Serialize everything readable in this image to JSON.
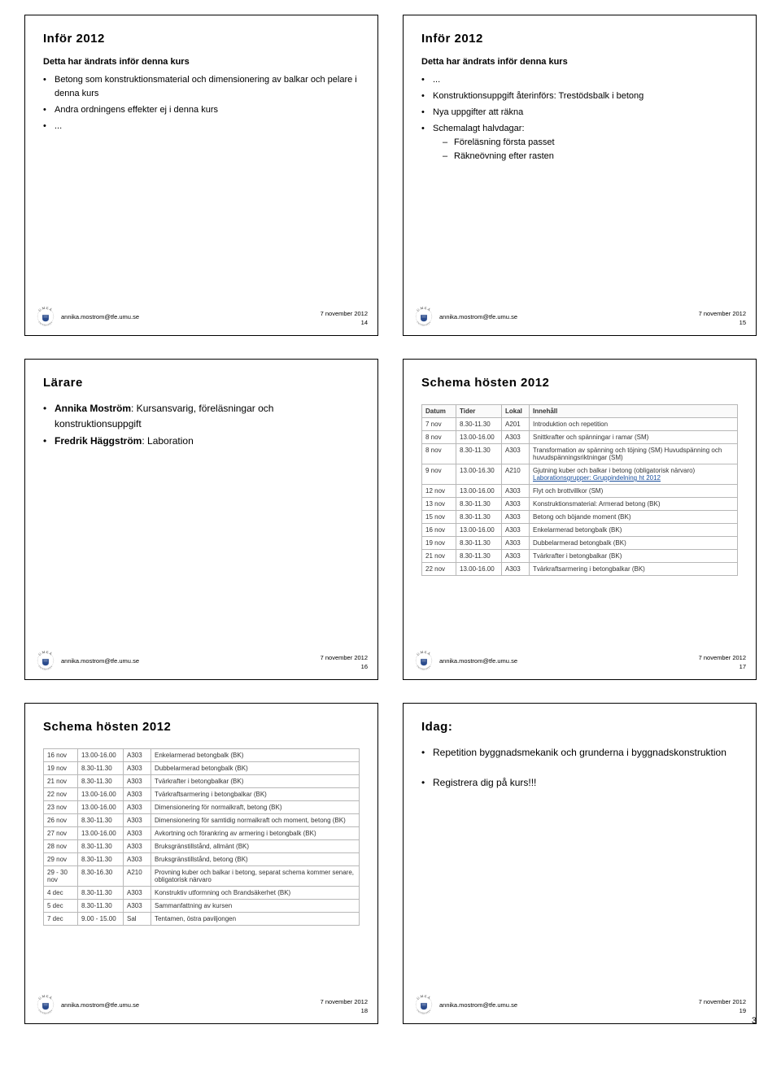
{
  "pageNumber": "3",
  "common": {
    "email": "annika.mostrom@tfe.umu.se",
    "date": "7 november 2012"
  },
  "logo": {
    "outerText": "UMEÅ",
    "bottomText": "UNIVERSITET",
    "fillColor": "#2a4b8d",
    "strokeColor": "#333333"
  },
  "slides": {
    "s14": {
      "title": "Inför 2012",
      "subhead": "Detta har ändrats inför denna kurs",
      "bullets": [
        "Betong som konstruktionsmaterial och dimensionering av balkar och pelare i denna kurs",
        "Andra ordningens effekter ej i denna kurs",
        "..."
      ],
      "num": "14"
    },
    "s15": {
      "title": "Inför 2012",
      "subhead": "Detta har ändrats inför denna kurs",
      "bullets_pre": "...",
      "bullets": [
        "Konstruktionsuppgift återinförs: Trestödsbalk i betong",
        "Nya uppgifter att räkna",
        "Schemalagt halvdagar:"
      ],
      "sub": [
        "Föreläsning första passet",
        "Räkneövning efter rasten"
      ],
      "num": "15"
    },
    "s16": {
      "title": "Lärare",
      "bullets": [
        {
          "strong": "Annika Moström",
          "rest": ": Kursansvarig, föreläsningar och konstruktionsuppgift"
        },
        {
          "strong": "Fredrik Häggström",
          "rest": ": Laboration"
        }
      ],
      "num": "16"
    },
    "s17": {
      "title": "Schema hösten 2012",
      "headers": [
        "Datum",
        "Tider",
        "Lokal",
        "Innehåll"
      ],
      "rows": [
        [
          "7 nov",
          "8.30-11.30",
          "A201",
          "Introduktion och repetition"
        ],
        [
          "8 nov",
          "13.00-16.00",
          "A303",
          "Snittkrafter och spänningar i ramar (SM)"
        ],
        [
          "8 nov",
          "8.30-11.30",
          "A303",
          "Transformation av spänning och töjning (SM) Huvudspänning och huvudspänningsriktningar (SM)"
        ],
        [
          "9 nov",
          "13.00-16.30",
          "A210",
          "Gjutning kuber och balkar i betong (obligatorisk närvaro)"
        ],
        [
          "12 nov",
          "13.00-16.00",
          "A303",
          "Flyt och brottvillkor (SM)"
        ],
        [
          "13 nov",
          "8.30-11.30",
          "A303",
          "Konstruktionsmaterial: Armerad betong (BK)"
        ],
        [
          "15 nov",
          "8.30-11.30",
          "A303",
          "Betong och böjande moment (BK)"
        ],
        [
          "16 nov",
          "13.00-16.00",
          "A303",
          "Enkelarmerad betongbalk (BK)"
        ],
        [
          "19 nov",
          "8.30-11.30",
          "A303",
          "Dubbelarmerad betongbalk (BK)"
        ],
        [
          "21 nov",
          "8.30-11.30",
          "A303",
          "Tvärkrafter i betongbalkar (BK)"
        ],
        [
          "22 nov",
          "13.00-16.00",
          "A303",
          "Tvärkraftsarmering i betongbalkar (BK)"
        ]
      ],
      "extra_link": "Laborationsgrupper: Gruppindelning ht 2012",
      "num": "17"
    },
    "s18": {
      "title": "Schema hösten 2012",
      "rows": [
        [
          "16 nov",
          "13.00-16.00",
          "A303",
          "Enkelarmerad betongbalk (BK)"
        ],
        [
          "19 nov",
          "8.30-11.30",
          "A303",
          "Dubbelarmerad betongbalk (BK)"
        ],
        [
          "21 nov",
          "8.30-11.30",
          "A303",
          "Tvärkrafter i betongbalkar (BK)"
        ],
        [
          "22 nov",
          "13.00-16.00",
          "A303",
          "Tvärkraftsarmering i betongbalkar (BK)"
        ],
        [
          "23 nov",
          "13.00-16.00",
          "A303",
          "Dimensionering för normalkraft, betong (BK)"
        ],
        [
          "26 nov",
          "8.30-11.30",
          "A303",
          "Dimensionering för samtidig normalkraft och moment, betong (BK)"
        ],
        [
          "27 nov",
          "13.00-16.00",
          "A303",
          "Avkortning och förankring av armering i betongbalk (BK)"
        ],
        [
          "28 nov",
          "8.30-11.30",
          "A303",
          "Bruksgränstillstånd, allmänt (BK)"
        ],
        [
          "29 nov",
          "8.30-11.30",
          "A303",
          "Bruksgränstillstånd, betong (BK)"
        ],
        [
          "29 - 30 nov",
          "8.30-16.30",
          "A210",
          "Provning kuber och balkar i betong, separat schema kommer senare, obligatorisk närvaro"
        ],
        [
          "4 dec",
          "8.30-11.30",
          "A303",
          "Konstruktiv utformning och Brandsäkerhet (BK)"
        ],
        [
          "5 dec",
          "8.30-11.30",
          "A303",
          "Sammanfattning av kursen"
        ],
        [
          "7 dec",
          "9.00 - 15.00",
          "Sal",
          "Tentamen, östra paviljongen"
        ]
      ],
      "num": "18"
    },
    "s19": {
      "title": "Idag:",
      "bullets": [
        "Repetition byggnadsmekanik och grunderna i byggnadskonstruktion",
        "Registrera dig på kurs!!!"
      ],
      "num": "19"
    }
  }
}
